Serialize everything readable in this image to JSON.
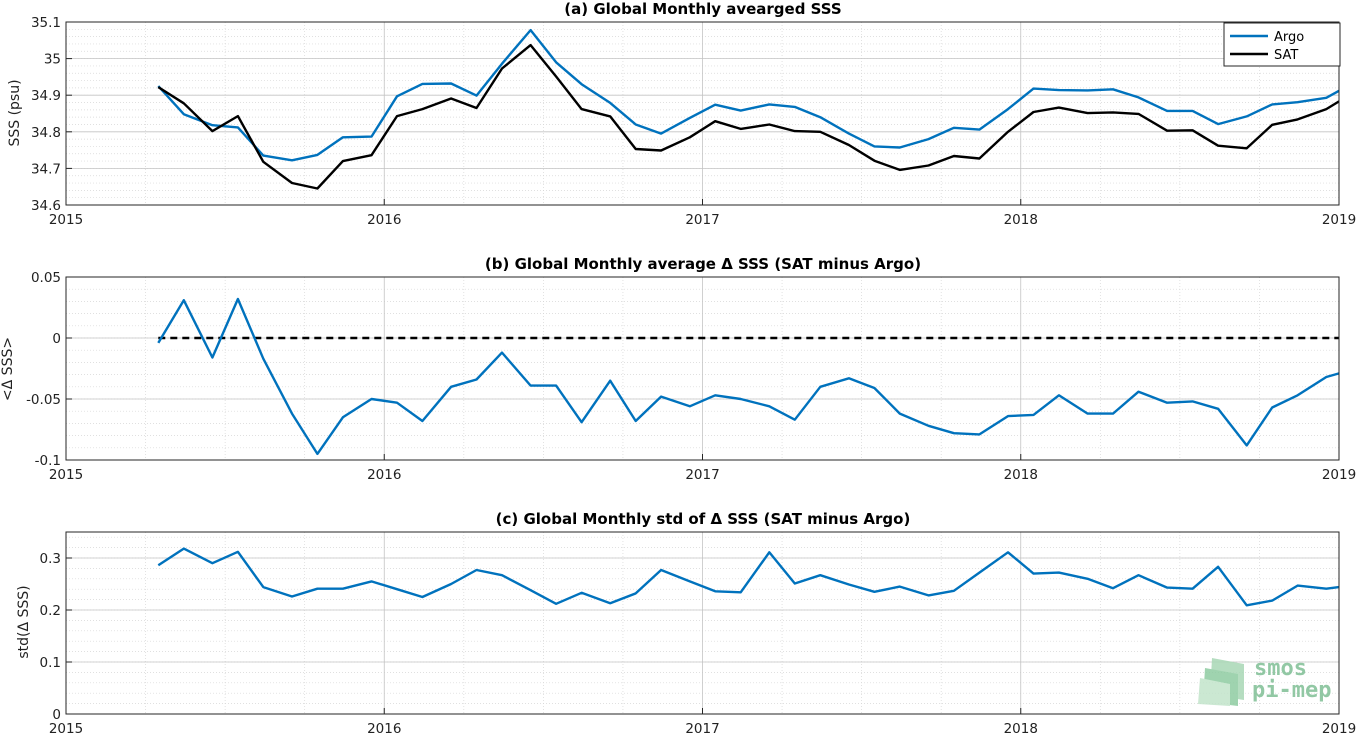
{
  "watermark": {
    "line1": "smos",
    "line2": "pi-mep"
  },
  "chart_data": [
    {
      "type": "line",
      "title": "(a) Global Monthly avearged SSS",
      "ylabel": "SSS (psu)",
      "xlabel": "",
      "xlim": [
        2015,
        2019
      ],
      "ylim": [
        34.6,
        35.1
      ],
      "xticks": [
        "2015",
        "2016",
        "2017",
        "2018",
        "2019"
      ],
      "yticks": [
        "34.6",
        "34.7",
        "34.8",
        "34.9",
        "35",
        "35.1"
      ],
      "ytick_values": [
        34.6,
        34.7,
        34.8,
        34.9,
        35.0,
        35.1
      ],
      "grid": true,
      "legend": "top-right",
      "x": [
        2015.29,
        2015.37,
        2015.46,
        2015.54,
        2015.62,
        2015.71,
        2015.79,
        2015.87,
        2015.96,
        2016.04,
        2016.12,
        2016.21,
        2016.29,
        2016.37,
        2016.46,
        2016.54,
        2016.62,
        2016.71,
        2016.79,
        2016.87,
        2016.96,
        2017.04,
        2017.12,
        2017.21,
        2017.29,
        2017.37,
        2017.46,
        2017.54,
        2017.62,
        2017.71,
        2017.79,
        2017.87,
        2017.96,
        2018.04,
        2018.12,
        2018.21,
        2018.29,
        2018.37,
        2018.46,
        2018.54,
        2018.62,
        2018.71,
        2018.79,
        2018.87,
        2018.96,
        2019.0
      ],
      "series": [
        {
          "name": "Argo",
          "color": "#0072bd",
          "values": [
            34.925,
            34.848,
            34.818,
            34.812,
            34.735,
            34.722,
            34.737,
            34.785,
            34.787,
            34.897,
            34.931,
            34.932,
            34.899,
            34.986,
            35.078,
            34.99,
            34.93,
            34.879,
            34.82,
            34.795,
            34.838,
            34.874,
            34.858,
            34.875,
            34.868,
            34.84,
            34.795,
            34.76,
            34.757,
            34.78,
            34.811,
            34.806,
            34.862,
            34.918,
            34.914,
            34.913,
            34.916,
            34.894,
            34.857,
            34.857,
            34.821,
            34.842,
            34.875,
            34.881,
            34.893,
            34.912
          ]
        },
        {
          "name": "SAT",
          "color": "#000000",
          "values": [
            34.922,
            34.878,
            34.802,
            34.843,
            34.718,
            34.66,
            34.645,
            34.72,
            34.736,
            34.843,
            34.862,
            34.891,
            34.865,
            34.973,
            35.037,
            34.951,
            34.862,
            34.842,
            34.753,
            34.749,
            34.785,
            34.829,
            34.808,
            34.82,
            34.802,
            34.8,
            34.764,
            34.721,
            34.696,
            34.708,
            34.734,
            34.727,
            34.8,
            34.854,
            34.866,
            34.851,
            34.853,
            34.849,
            34.803,
            34.804,
            34.762,
            34.755,
            34.819,
            34.834,
            34.862,
            34.883
          ]
        }
      ]
    },
    {
      "type": "line",
      "title": "(b) Global Monthly average Δ SSS (SAT minus Argo)",
      "ylabel": "<Δ SSS>",
      "xlabel": "",
      "xlim": [
        2015,
        2019
      ],
      "ylim": [
        -0.1,
        0.05
      ],
      "xticks": [
        "2015",
        "2016",
        "2017",
        "2018",
        "2019"
      ],
      "yticks": [
        "-0.1",
        "-0.05",
        "0",
        "0.05"
      ],
      "ytick_values": [
        -0.1,
        -0.05,
        0,
        0.05
      ],
      "grid": true,
      "reference_line": {
        "y": 0,
        "style": "dashed",
        "color": "#000000",
        "x_start": 2015.29
      },
      "x": [
        2015.29,
        2015.37,
        2015.46,
        2015.54,
        2015.62,
        2015.71,
        2015.79,
        2015.87,
        2015.96,
        2016.04,
        2016.12,
        2016.21,
        2016.29,
        2016.37,
        2016.46,
        2016.54,
        2016.62,
        2016.71,
        2016.79,
        2016.87,
        2016.96,
        2017.04,
        2017.12,
        2017.21,
        2017.29,
        2017.37,
        2017.46,
        2017.54,
        2017.62,
        2017.71,
        2017.79,
        2017.87,
        2017.96,
        2018.04,
        2018.12,
        2018.21,
        2018.29,
        2018.37,
        2018.46,
        2018.54,
        2018.62,
        2018.71,
        2018.79,
        2018.87,
        2018.96,
        2019.0
      ],
      "series": [
        {
          "color": "#0072bd",
          "values": [
            -0.004,
            0.031,
            -0.016,
            0.032,
            -0.017,
            -0.062,
            -0.095,
            -0.065,
            -0.05,
            -0.053,
            -0.068,
            -0.04,
            -0.034,
            -0.012,
            -0.039,
            -0.039,
            -0.069,
            -0.035,
            -0.068,
            -0.048,
            -0.056,
            -0.047,
            -0.05,
            -0.056,
            -0.067,
            -0.04,
            -0.033,
            -0.041,
            -0.062,
            -0.072,
            -0.078,
            -0.079,
            -0.064,
            -0.063,
            -0.047,
            -0.062,
            -0.062,
            -0.044,
            -0.053,
            -0.052,
            -0.058,
            -0.088,
            -0.057,
            -0.047,
            -0.032,
            -0.029
          ]
        }
      ]
    },
    {
      "type": "line",
      "title": "(c) Global Monthly std of Δ SSS (SAT minus Argo)",
      "ylabel": "std(Δ SSS)",
      "xlabel": "",
      "xlim": [
        2015,
        2019
      ],
      "ylim": [
        0,
        0.35
      ],
      "xticks": [
        "2015",
        "2016",
        "2017",
        "2018",
        "2019"
      ],
      "yticks": [
        "0",
        "0.1",
        "0.2",
        "0.3"
      ],
      "ytick_values": [
        0,
        0.1,
        0.2,
        0.3
      ],
      "grid": true,
      "x": [
        2015.29,
        2015.37,
        2015.46,
        2015.54,
        2015.62,
        2015.71,
        2015.79,
        2015.87,
        2015.96,
        2016.04,
        2016.12,
        2016.21,
        2016.29,
        2016.37,
        2016.46,
        2016.54,
        2016.62,
        2016.71,
        2016.79,
        2016.87,
        2016.96,
        2017.04,
        2017.12,
        2017.21,
        2017.29,
        2017.37,
        2017.46,
        2017.54,
        2017.62,
        2017.71,
        2017.79,
        2017.87,
        2017.96,
        2018.04,
        2018.12,
        2018.21,
        2018.29,
        2018.37,
        2018.46,
        2018.54,
        2018.62,
        2018.71,
        2018.79,
        2018.87,
        2018.96,
        2019.0
      ],
      "series": [
        {
          "color": "#0072bd",
          "values": [
            0.286,
            0.318,
            0.29,
            0.312,
            0.244,
            0.226,
            0.241,
            0.241,
            0.255,
            0.24,
            0.225,
            0.25,
            0.277,
            0.267,
            0.238,
            0.212,
            0.233,
            0.213,
            0.232,
            0.277,
            0.255,
            0.236,
            0.234,
            0.311,
            0.251,
            0.267,
            0.249,
            0.235,
            0.245,
            0.228,
            0.237,
            0.272,
            0.311,
            0.27,
            0.272,
            0.26,
            0.242,
            0.267,
            0.243,
            0.241,
            0.283,
            0.209,
            0.218,
            0.247,
            0.241,
            0.244
          ]
        }
      ]
    }
  ]
}
